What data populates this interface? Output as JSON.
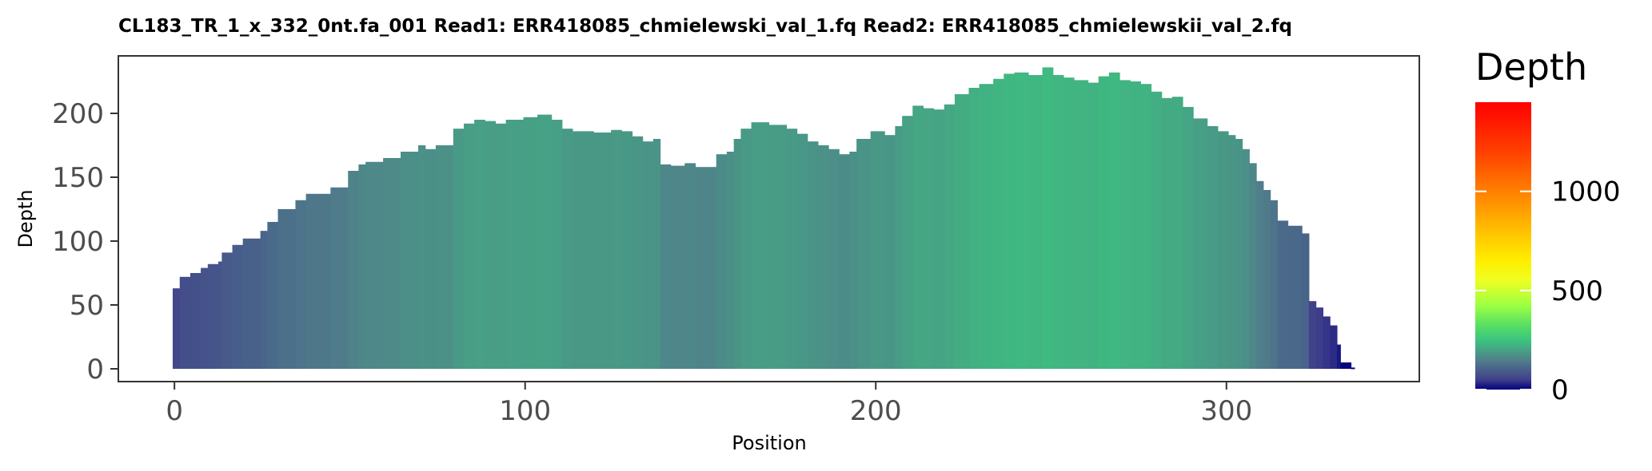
{
  "chart_data": {
    "type": "bar",
    "title": "CL183_TR_1_x_332_0nt.fa_001   Read1: ERR418085_chmielewski_val_1.fq   Read2: ERR418085_chmielewskii_val_2.fq",
    "xlabel": "Position",
    "ylabel": "Depth",
    "xlim": [
      -16,
      355
    ],
    "ylim": [
      -10,
      245
    ],
    "x_ticks": [
      0,
      100,
      200,
      300
    ],
    "y_ticks": [
      0,
      50,
      100,
      150,
      200
    ],
    "x_tick_labels": [
      "0",
      "100",
      "200",
      "300"
    ],
    "y_tick_labels": [
      "0",
      "50",
      "100",
      "150",
      "200"
    ],
    "profile": [
      [
        0,
        63
      ],
      [
        2,
        72
      ],
      [
        5,
        75
      ],
      [
        8,
        79
      ],
      [
        10,
        82
      ],
      [
        13,
        84
      ],
      [
        14,
        91
      ],
      [
        17,
        97
      ],
      [
        20,
        102
      ],
      [
        25,
        108
      ],
      [
        27,
        115
      ],
      [
        30,
        125
      ],
      [
        35,
        132
      ],
      [
        38,
        137
      ],
      [
        45,
        142
      ],
      [
        50,
        155
      ],
      [
        53,
        160
      ],
      [
        55,
        162
      ],
      [
        60,
        165
      ],
      [
        65,
        170
      ],
      [
        70,
        175
      ],
      [
        72,
        172
      ],
      [
        75,
        175
      ],
      [
        80,
        188
      ],
      [
        83,
        192
      ],
      [
        86,
        195
      ],
      [
        89,
        194
      ],
      [
        92,
        192
      ],
      [
        95,
        195
      ],
      [
        100,
        197
      ],
      [
        104,
        199
      ],
      [
        108,
        195
      ],
      [
        111,
        188
      ],
      [
        114,
        186
      ],
      [
        120,
        185
      ],
      [
        125,
        187
      ],
      [
        128,
        186
      ],
      [
        131,
        182
      ],
      [
        134,
        178
      ],
      [
        137,
        180
      ],
      [
        139,
        160
      ],
      [
        142,
        159
      ],
      [
        146,
        161
      ],
      [
        149,
        158
      ],
      [
        152,
        158
      ],
      [
        155,
        168
      ],
      [
        158,
        170
      ],
      [
        160,
        180
      ],
      [
        162,
        188
      ],
      [
        165,
        193
      ],
      [
        170,
        191
      ],
      [
        175,
        188
      ],
      [
        178,
        184
      ],
      [
        181,
        178
      ],
      [
        184,
        175
      ],
      [
        187,
        172
      ],
      [
        190,
        168
      ],
      [
        193,
        170
      ],
      [
        195,
        180
      ],
      [
        199,
        186
      ],
      [
        203,
        183
      ],
      [
        206,
        190
      ],
      [
        208,
        198
      ],
      [
        211,
        206
      ],
      [
        214,
        204
      ],
      [
        217,
        203
      ],
      [
        220,
        207
      ],
      [
        223,
        215
      ],
      [
        227,
        220
      ],
      [
        230,
        223
      ],
      [
        234,
        227
      ],
      [
        237,
        231
      ],
      [
        240,
        232
      ],
      [
        244,
        230
      ],
      [
        248,
        236
      ],
      [
        251,
        230
      ],
      [
        254,
        228
      ],
      [
        257,
        226
      ],
      [
        261,
        224
      ],
      [
        264,
        229
      ],
      [
        267,
        232
      ],
      [
        270,
        226
      ],
      [
        273,
        225
      ],
      [
        276,
        223
      ],
      [
        279,
        217
      ],
      [
        282,
        212
      ],
      [
        285,
        213
      ],
      [
        288,
        205
      ],
      [
        291,
        196
      ],
      [
        295,
        190
      ],
      [
        298,
        186
      ],
      [
        301,
        183
      ],
      [
        303,
        180
      ],
      [
        305,
        172
      ],
      [
        307,
        161
      ],
      [
        309,
        147
      ],
      [
        311,
        140
      ],
      [
        313,
        132
      ],
      [
        315,
        116
      ],
      [
        318,
        112
      ],
      [
        322,
        106
      ],
      [
        324,
        53
      ],
      [
        326,
        48
      ],
      [
        328,
        41
      ],
      [
        330,
        34
      ],
      [
        332,
        19
      ],
      [
        333,
        5
      ],
      [
        336,
        1
      ]
    ],
    "x_end": 337,
    "legend": {
      "title": "Depth",
      "placement": "right",
      "min": 0,
      "max": 1450,
      "breaks": [
        0,
        500,
        1000
      ],
      "break_labels": [
        "0",
        "500",
        "1000"
      ],
      "colors": [
        "#00007F",
        "#40408A",
        "#50808A",
        "#3CC47F",
        "#55DD66",
        "#99FF44",
        "#EEFF22",
        "#FFEE00",
        "#FFC000",
        "#FF8000",
        "#FF4000",
        "#FF0000"
      ],
      "color_stops": [
        0,
        50,
        150,
        250,
        320,
        420,
        550,
        650,
        800,
        1000,
        1200,
        1450
      ]
    },
    "grid": false,
    "panel_border": true
  }
}
